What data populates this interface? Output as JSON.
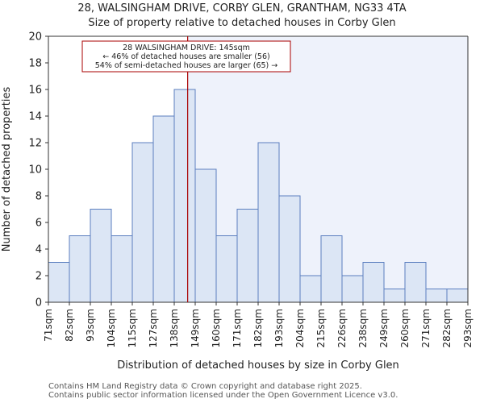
{
  "chart_data": {
    "type": "bar",
    "title": "28, WALSINGHAM DRIVE, CORBY GLEN, GRANTHAM, NG33 4TA",
    "subtitle": "Size of property relative to detached houses in Corby Glen",
    "xlabel": "Distribution of detached houses by size in Corby Glen",
    "ylabel": "Number of detached properties",
    "tick_labels": [
      "71sqm",
      "82sqm",
      "93sqm",
      "104sqm",
      "115sqm",
      "127sqm",
      "138sqm",
      "149sqm",
      "160sqm",
      "171sqm",
      "182sqm",
      "193sqm",
      "204sqm",
      "215sqm",
      "226sqm",
      "238sqm",
      "249sqm",
      "260sqm",
      "271sqm",
      "282sqm",
      "293sqm"
    ],
    "values": [
      3,
      5,
      7,
      5,
      12,
      14,
      16,
      10,
      5,
      7,
      12,
      8,
      2,
      5,
      2,
      3,
      1,
      3,
      1,
      1
    ],
    "ylim": [
      0,
      20
    ],
    "yticks": [
      0,
      2,
      4,
      6,
      8,
      10,
      12,
      14,
      16,
      18,
      20
    ],
    "marker_value": 145,
    "marker_bin_index": 6,
    "marker_bin_fraction": 0.64,
    "annotation": [
      "28 WALSINGHAM DRIVE: 145sqm",
      "← 46% of detached houses are smaller (56)",
      "54% of semi-detached houses are larger (65) →"
    ],
    "colors": {
      "bar_fill": "#dce6f5",
      "bar_stroke": "#5b7fbf",
      "marker": "#aa0000",
      "highlight_bg": "#eef2fb"
    }
  },
  "footer": {
    "line1": "Contains HM Land Registry data © Crown copyright and database right 2025.",
    "line2": "Contains public sector information licensed under the Open Government Licence v3.0."
  }
}
